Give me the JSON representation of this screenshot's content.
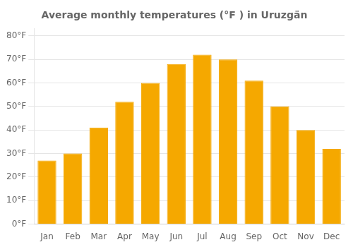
{
  "chart_data": {
    "type": "bar",
    "title": "Average monthly temperatures (°F ) in Uruzgän",
    "categories": [
      "Jan",
      "Feb",
      "Mar",
      "Apr",
      "May",
      "Jun",
      "Jul",
      "Aug",
      "Sep",
      "Oct",
      "Nov",
      "Dec"
    ],
    "values": [
      27,
      30,
      41,
      52,
      60,
      68,
      72,
      70,
      61,
      50,
      40,
      32
    ],
    "color": "#F5A800",
    "ylim": [
      0,
      83
    ],
    "yticks": [
      {
        "value": 0,
        "label": "0°F"
      },
      {
        "value": 10,
        "label": "10°F"
      },
      {
        "value": 20,
        "label": "20°F"
      },
      {
        "value": 30,
        "label": "30°F"
      },
      {
        "value": 40,
        "label": "40°F"
      },
      {
        "value": 50,
        "label": "50°F"
      },
      {
        "value": 60,
        "label": "60°F"
      },
      {
        "value": 70,
        "label": "70°F"
      },
      {
        "value": 80,
        "label": "80°F"
      }
    ],
    "grid": true
  }
}
